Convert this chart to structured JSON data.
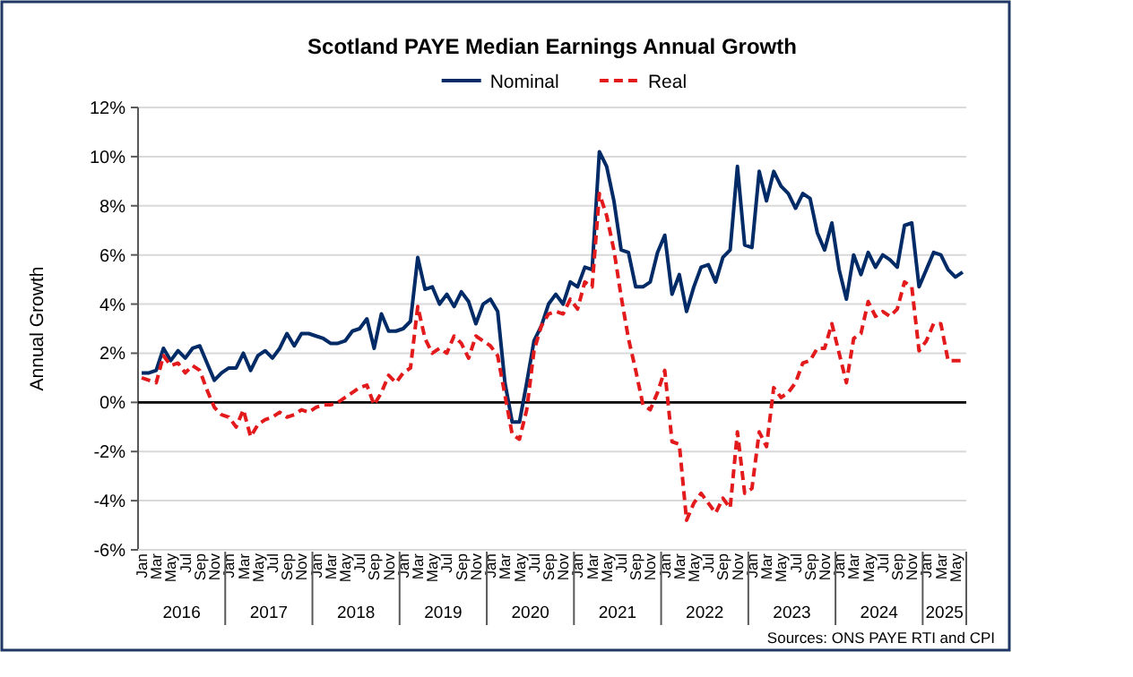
{
  "chart_data": {
    "type": "line",
    "title": "Scotland PAYE Median Earnings Annual Growth",
    "ylabel": "Annual Growth",
    "categories": [
      "Jan",
      null,
      "Mar",
      null,
      "May",
      null,
      "Jul",
      null,
      "Sep",
      null,
      "Nov",
      null,
      "Jan",
      null,
      "Mar",
      null,
      "May",
      null,
      "Jul",
      null,
      "Sep",
      null,
      "Nov",
      null,
      "Jan",
      null,
      "Mar",
      null,
      "May",
      null,
      "Jul",
      null,
      "Sep",
      null,
      "Nov",
      null,
      "Jan",
      null,
      "Mar",
      null,
      "May",
      null,
      "Jul",
      null,
      "Sep",
      null,
      "Nov",
      null,
      "Jan",
      null,
      "Mar",
      null,
      "May",
      null,
      "Jul",
      null,
      "Sep",
      null,
      "Nov",
      null,
      "Jan",
      null,
      "Mar",
      null,
      "May",
      null,
      "Jul",
      null,
      "Sep",
      null,
      "Nov",
      null,
      "Jan",
      null,
      "Mar",
      null,
      "May",
      null,
      "Jul",
      null,
      "Sep",
      null,
      "Nov",
      null,
      "Jan",
      null,
      "Mar",
      null,
      "May",
      null,
      "Jul",
      null,
      "Sep",
      null,
      "Nov",
      null,
      "Jan",
      null,
      "Mar",
      null,
      "May",
      null,
      "Jul",
      null,
      "Sep",
      null,
      "Nov",
      null,
      "Jan",
      null,
      "Mar",
      null,
      "May",
      null
    ],
    "series": [
      {
        "name": "Nominal",
        "color": "#002b67",
        "line_style": "solid",
        "values": [
          1.2,
          1.2,
          1.3,
          2.2,
          1.7,
          2.1,
          1.8,
          2.2,
          2.3,
          1.6,
          0.9,
          1.2,
          1.4,
          1.4,
          2.0,
          1.3,
          1.9,
          2.1,
          1.8,
          2.2,
          2.8,
          2.3,
          2.8,
          2.8,
          2.7,
          2.6,
          2.4,
          2.4,
          2.5,
          2.9,
          3.0,
          3.4,
          2.2,
          3.6,
          2.9,
          2.9,
          3.0,
          3.3,
          5.9,
          4.6,
          4.7,
          4.0,
          4.4,
          3.9,
          4.5,
          4.1,
          3.2,
          4.0,
          4.2,
          3.7,
          0.8,
          -0.8,
          -0.8,
          0.8,
          2.5,
          3.1,
          4.0,
          4.4,
          4.0,
          4.9,
          4.7,
          5.5,
          5.4,
          10.2,
          9.6,
          8.2,
          6.2,
          6.1,
          4.7,
          4.7,
          4.9,
          6.1,
          6.8,
          4.4,
          5.2,
          3.7,
          4.7,
          5.5,
          5.6,
          4.9,
          5.9,
          6.2,
          9.6,
          6.4,
          6.3,
          9.4,
          8.2,
          9.4,
          8.8,
          8.5,
          7.9,
          8.5,
          8.3,
          6.9,
          6.2,
          7.3,
          5.4,
          4.2,
          6.0,
          5.2,
          6.1,
          5.5,
          6.0,
          5.8,
          5.5,
          7.2,
          7.3,
          4.7,
          5.4,
          6.1,
          6.0,
          5.4,
          5.1,
          5.3
        ]
      },
      {
        "name": "Real",
        "color": "#e31a1c",
        "line_style": "dashed",
        "values": [
          1.0,
          0.9,
          0.8,
          1.9,
          1.5,
          1.6,
          1.2,
          1.5,
          1.3,
          0.5,
          -0.2,
          -0.5,
          -0.6,
          -1.0,
          -0.3,
          -1.4,
          -0.9,
          -0.7,
          -0.6,
          -0.4,
          -0.6,
          -0.5,
          -0.3,
          -0.4,
          -0.2,
          -0.1,
          -0.1,
          0.0,
          0.2,
          0.4,
          0.6,
          0.7,
          -0.1,
          0.4,
          1.1,
          0.8,
          1.2,
          1.4,
          3.9,
          2.6,
          2.0,
          2.2,
          2.0,
          2.7,
          2.4,
          1.8,
          2.7,
          2.5,
          2.3,
          1.9,
          0.3,
          -1.3,
          -1.5,
          -0.3,
          2.1,
          3.1,
          3.6,
          3.7,
          3.6,
          4.2,
          3.8,
          4.9,
          4.7,
          8.5,
          7.6,
          6.2,
          4.3,
          2.6,
          1.3,
          -0.1,
          -0.3,
          0.4,
          1.3,
          -1.6,
          -1.7,
          -4.8,
          -4.1,
          -3.7,
          -4.1,
          -4.5,
          -3.9,
          -4.3,
          -1.2,
          -3.7,
          -3.5,
          -1.2,
          -1.8,
          0.6,
          0.2,
          0.4,
          0.8,
          1.6,
          1.7,
          2.2,
          2.2,
          3.2,
          2.0,
          0.8,
          2.6,
          2.8,
          4.1,
          3.5,
          3.7,
          3.5,
          3.8,
          4.9,
          4.7,
          2.1,
          2.5,
          3.2,
          3.2,
          1.7,
          1.7,
          1.7
        ]
      }
    ],
    "ylim": [
      -6,
      12
    ],
    "yticks": [
      {
        "value": -6,
        "label": "-6%"
      },
      {
        "value": -4,
        "label": "-4%"
      },
      {
        "value": -2,
        "label": "-2%"
      },
      {
        "value": 0,
        "label": "0%"
      },
      {
        "value": 2,
        "label": "2%"
      },
      {
        "value": 4,
        "label": "4%"
      },
      {
        "value": 6,
        "label": "6%"
      },
      {
        "value": 8,
        "label": "8%"
      },
      {
        "value": 10,
        "label": "10%"
      },
      {
        "value": 12,
        "label": "12%"
      }
    ],
    "grid": "y",
    "legend": "top",
    "annotations": [
      "2016",
      "2017",
      "2018",
      "2019",
      "2020",
      "2021",
      "2022",
      "2023",
      "2024",
      "2025",
      "Sources: ONS PAYE RTI and CPI"
    ]
  }
}
